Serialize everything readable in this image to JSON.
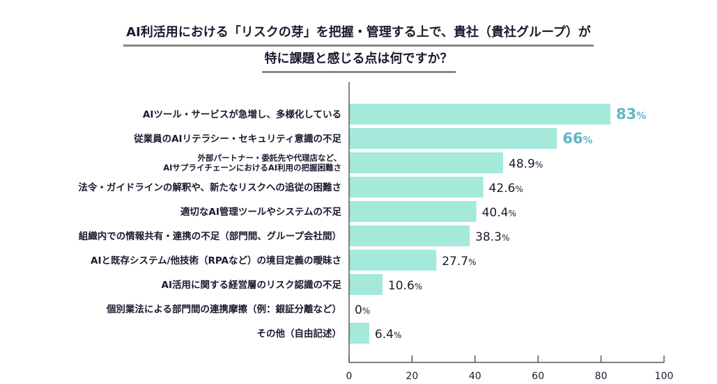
{
  "title_line1": "AI利活用における「リスクの芽」を把握・管理する上で、貴社（貴社グループ）が",
  "title_line2": "特に課題と感じる点は何ですか？",
  "colors": {
    "bar": "#a5e9da",
    "highlight_label": "#5bb8c4",
    "label": "#1a1a2e"
  },
  "chart_data": {
    "type": "bar",
    "orientation": "horizontal",
    "categories": [
      [
        "AIツール・サービスが急増し、多様化している"
      ],
      [
        "従業員のAIリテラシー・セキュリティ意識の不足"
      ],
      [
        "外部パートナー・委託先や代理店など、",
        "AIサプライチェーンにおけるAI利用の把握困難さ"
      ],
      [
        "法令・ガイドラインの解釈や、新たなリスクへの追従の困難さ"
      ],
      [
        "適切なAI管理ツールやシステムの不足"
      ],
      [
        "組織内での情報共有・連携の不足（部門間、グループ会社間）"
      ],
      [
        "AIと既存システム/他技術（RPAなど）の境目定義の曖昧さ"
      ],
      [
        "AI活用に関する経営層のリスク認識の不足"
      ],
      [
        "個別業法による部門間の連携摩擦（例：銀証分離など）"
      ],
      [
        "その他（自由記述）"
      ]
    ],
    "values": [
      83,
      66,
      48.9,
      42.6,
      40.4,
      38.3,
      27.7,
      10.6,
      0,
      6.4
    ],
    "data_labels": [
      "83",
      "66",
      "48.9",
      "42.6",
      "40.4",
      "38.3",
      "27.7",
      "10.6",
      "0",
      "6.4"
    ],
    "unit": "%",
    "highlighted": [
      0,
      1
    ],
    "xlim": [
      0,
      100
    ],
    "xticks": [
      "0",
      "20",
      "40",
      "60",
      "80",
      "100"
    ],
    "grid": false
  }
}
